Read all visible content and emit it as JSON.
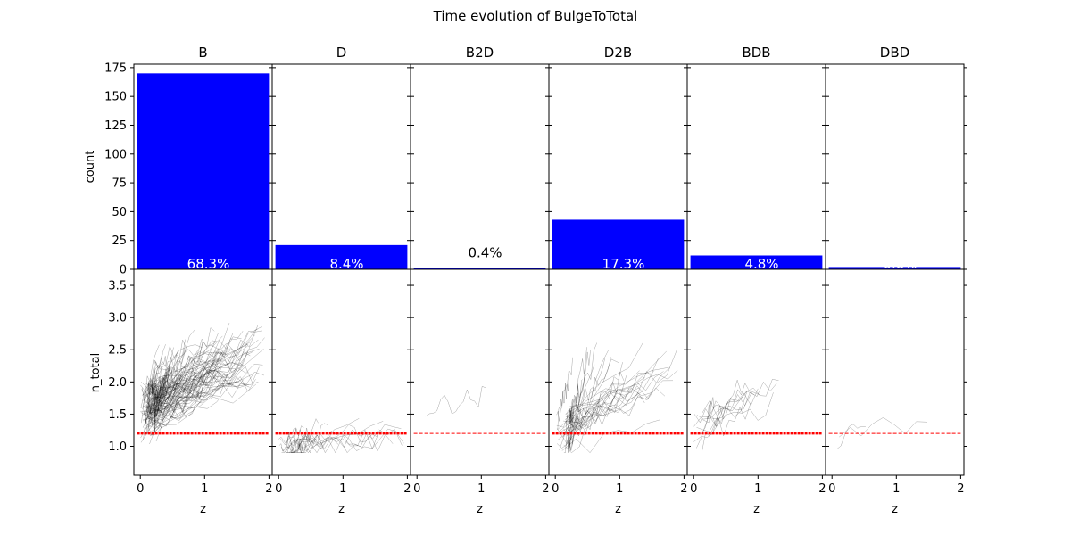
{
  "chart_data": {
    "type": "bar",
    "title": "Time evolution of BulgeToTotal",
    "panels": [
      "B",
      "D",
      "B2D",
      "D2B",
      "BDB",
      "DBD"
    ],
    "counts": [
      170,
      21,
      1,
      43,
      12,
      2
    ],
    "percent_labels": [
      "68.3%",
      "8.4%",
      "0.4%",
      "17.3%",
      "4.8%",
      "0.8%"
    ],
    "top_ylabel": "count",
    "top_ylim": [
      0,
      178
    ],
    "top_yticks": [
      0,
      25,
      50,
      75,
      100,
      125,
      150,
      175
    ],
    "bottom_ylabel": "n_total",
    "bottom_ylim": [
      0.55,
      3.75
    ],
    "bottom_yticks": [
      1.0,
      1.5,
      2.0,
      2.5,
      3.0,
      3.5
    ],
    "xlabel": "z",
    "xlim": [
      -0.1,
      2.05
    ],
    "xticks": [
      0,
      1,
      2
    ],
    "threshold": 1.2,
    "bar_color": "#0000ff",
    "threshold_color": "#ff0000",
    "track_color": "#000000",
    "track_counts": [
      110,
      18,
      1,
      40,
      12,
      2
    ],
    "track_ranges": [
      [
        1.2,
        2.6
      ],
      [
        0.8,
        1.3
      ],
      [
        1.5,
        1.8
      ],
      [
        0.85,
        2.3
      ],
      [
        1.0,
        2.0
      ],
      [
        1.0,
        1.4
      ]
    ]
  }
}
